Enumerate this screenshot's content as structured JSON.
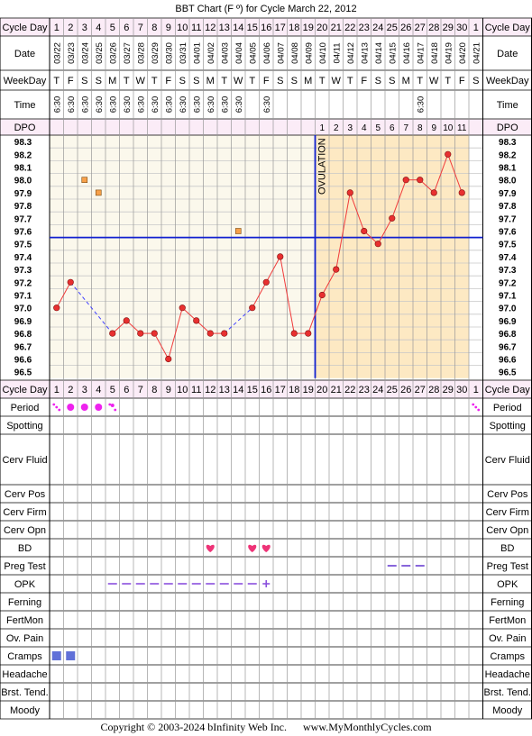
{
  "title": "BBT Chart (F º) for Cycle March 22, 2012",
  "copyright": "Copyright © 2003-2024 bInfinity Web Inc.      www.MyMonthlyCycles.com",
  "row_labels": {
    "cycle_day": "Cycle Day",
    "date": "Date",
    "weekday": "WeekDay",
    "time": "Time",
    "dpo": "DPO",
    "period": "Period",
    "spotting": "Spotting",
    "cerv_fluid": "Cerv Fluid",
    "cerv_pos": "Cerv Pos",
    "cerv_firm": "Cerv Firm",
    "cerv_opn": "Cerv Opn",
    "bd": "BD",
    "preg_test": "Preg Test",
    "opk": "OPK",
    "ferning": "Ferning",
    "fertmon": "FertMon",
    "ov_pain": "Ov. Pain",
    "cramps": "Cramps",
    "headache": "Headache",
    "brst_tend": "Brst. Tend.",
    "moody": "Moody"
  },
  "ovulation_label": "OVULATION",
  "colors": {
    "pre_bg": "#fbf8ec",
    "post_bg": "#fde9c3",
    "grid": "#c8c8c8",
    "header_bg": "#fbecf7",
    "line": "#f03c3c",
    "point": "#e83030",
    "coverline": "#1020d0",
    "ovulation": "#1020d0",
    "excluded": "#f7a04a",
    "dashed": "#4040ff",
    "period": "#ee22ee",
    "heart": "#ee3377",
    "cramps": "#6070d8",
    "opk": "#8a50dd",
    "preg": "#6a40d0"
  },
  "chart_data": {
    "type": "line",
    "title": "BBT Chart (F º) for Cycle March 22, 2012",
    "cycle_days": [
      "1",
      "2",
      "3",
      "4",
      "5",
      "6",
      "7",
      "8",
      "9",
      "10",
      "11",
      "12",
      "13",
      "14",
      "15",
      "16",
      "17",
      "18",
      "19",
      "20",
      "21",
      "22",
      "23",
      "24",
      "25",
      "26",
      "27",
      "28",
      "29",
      "30",
      "1"
    ],
    "dates": [
      "03/22",
      "03/23",
      "03/24",
      "03/25",
      "03/26",
      "03/27",
      "03/28",
      "03/29",
      "03/30",
      "03/31",
      "04/01",
      "04/02",
      "04/03",
      "04/04",
      "04/05",
      "04/06",
      "04/07",
      "04/08",
      "04/09",
      "04/10",
      "04/11",
      "04/12",
      "04/13",
      "04/14",
      "04/15",
      "04/16",
      "04/17",
      "04/18",
      "04/19",
      "04/20",
      "04/21"
    ],
    "weekdays": [
      "T",
      "F",
      "S",
      "S",
      "M",
      "T",
      "W",
      "T",
      "F",
      "S",
      "S",
      "M",
      "T",
      "W",
      "T",
      "F",
      "S",
      "S",
      "M",
      "T",
      "W",
      "T",
      "F",
      "S",
      "S",
      "M",
      "T",
      "W",
      "T",
      "F",
      "S"
    ],
    "times": [
      "6:30",
      "6:30",
      "6:30",
      "6:30",
      "6:30",
      "6:30",
      "6:30",
      "6:30",
      "6:30",
      "6:30",
      "6:30",
      "6:30",
      "6:30",
      "6:30",
      "",
      "6:30",
      "",
      "",
      "",
      "",
      "",
      "",
      "",
      "",
      "",
      "",
      "6:30",
      "",
      "",
      "",
      ""
    ],
    "dpo": [
      "",
      "",
      "",
      "",
      "",
      "",
      "",
      "",
      "",
      "",
      "",
      "",
      "",
      "",
      "",
      "",
      "",
      "",
      "",
      "1",
      "2",
      "3",
      "4",
      "5",
      "6",
      "7",
      "8",
      "9",
      "10",
      "11",
      ""
    ],
    "temp_axis": [
      "98.3",
      "98.2",
      "98.1",
      "98.0",
      "97.9",
      "97.8",
      "97.7",
      "97.6",
      "97.5",
      "97.4",
      "97.3",
      "97.2",
      "97.1",
      "97.0",
      "96.9",
      "96.8",
      "96.7",
      "96.6",
      "96.5"
    ],
    "ylim": [
      96.5,
      98.3
    ],
    "temperatures": [
      97.0,
      97.2,
      null,
      null,
      96.8,
      96.9,
      96.8,
      96.8,
      96.6,
      97.0,
      96.9,
      96.8,
      96.8,
      null,
      97.0,
      97.2,
      97.4,
      96.8,
      96.8,
      97.1,
      97.3,
      97.9,
      97.6,
      97.5,
      97.7,
      98.0,
      98.0,
      97.9,
      98.2,
      97.9,
      null
    ],
    "excluded_temps": [
      {
        "day_index": 2,
        "value": 98.0
      },
      {
        "day_index": 3,
        "value": 97.9
      },
      {
        "day_index": 13,
        "value": 97.6
      }
    ],
    "coverline": 97.5,
    "ovulation_day_index": 18,
    "period": [
      "light",
      "medium",
      "medium",
      "medium",
      "light",
      "",
      "",
      "",
      "",
      "",
      "",
      "",
      "",
      "",
      "",
      "",
      "",
      "",
      "",
      "",
      "",
      "",
      "",
      "",
      "",
      "",
      "",
      "",
      "",
      "",
      "light"
    ],
    "bd_day_indices": [
      11,
      14,
      15
    ],
    "opk_negative_day_indices": [
      4,
      5,
      6,
      7,
      8,
      9,
      10,
      11,
      12,
      13,
      14
    ],
    "opk_positive_day_indices": [
      15
    ],
    "preg_test_negative_day_indices": [
      24,
      25,
      26
    ],
    "cramps_day_indices": [
      0,
      1
    ]
  }
}
